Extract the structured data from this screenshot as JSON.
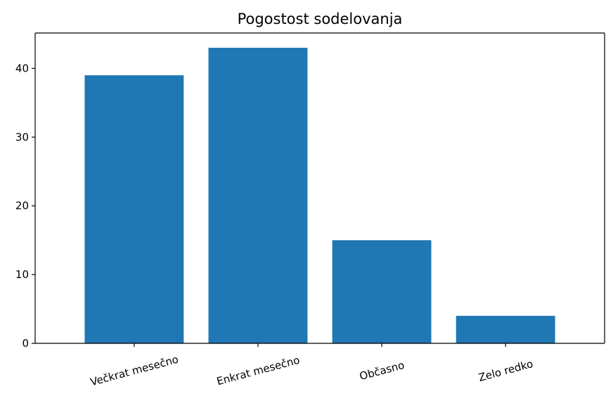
{
  "chart_data": {
    "type": "bar",
    "title": "Pogostost sodelovanja",
    "xlabel": "",
    "ylabel": "",
    "categories": [
      "Večkrat mesečno",
      "Enkrat mesečno",
      "Občasno",
      "Zelo redko"
    ],
    "values": [
      39,
      43,
      15,
      4
    ],
    "ylim": [
      0,
      45.15
    ],
    "yticks": [
      0,
      10,
      20,
      30,
      40
    ],
    "bar_color": "#1f77b4",
    "grid": false,
    "legend": "none",
    "xtick_rotation_deg": -15
  }
}
